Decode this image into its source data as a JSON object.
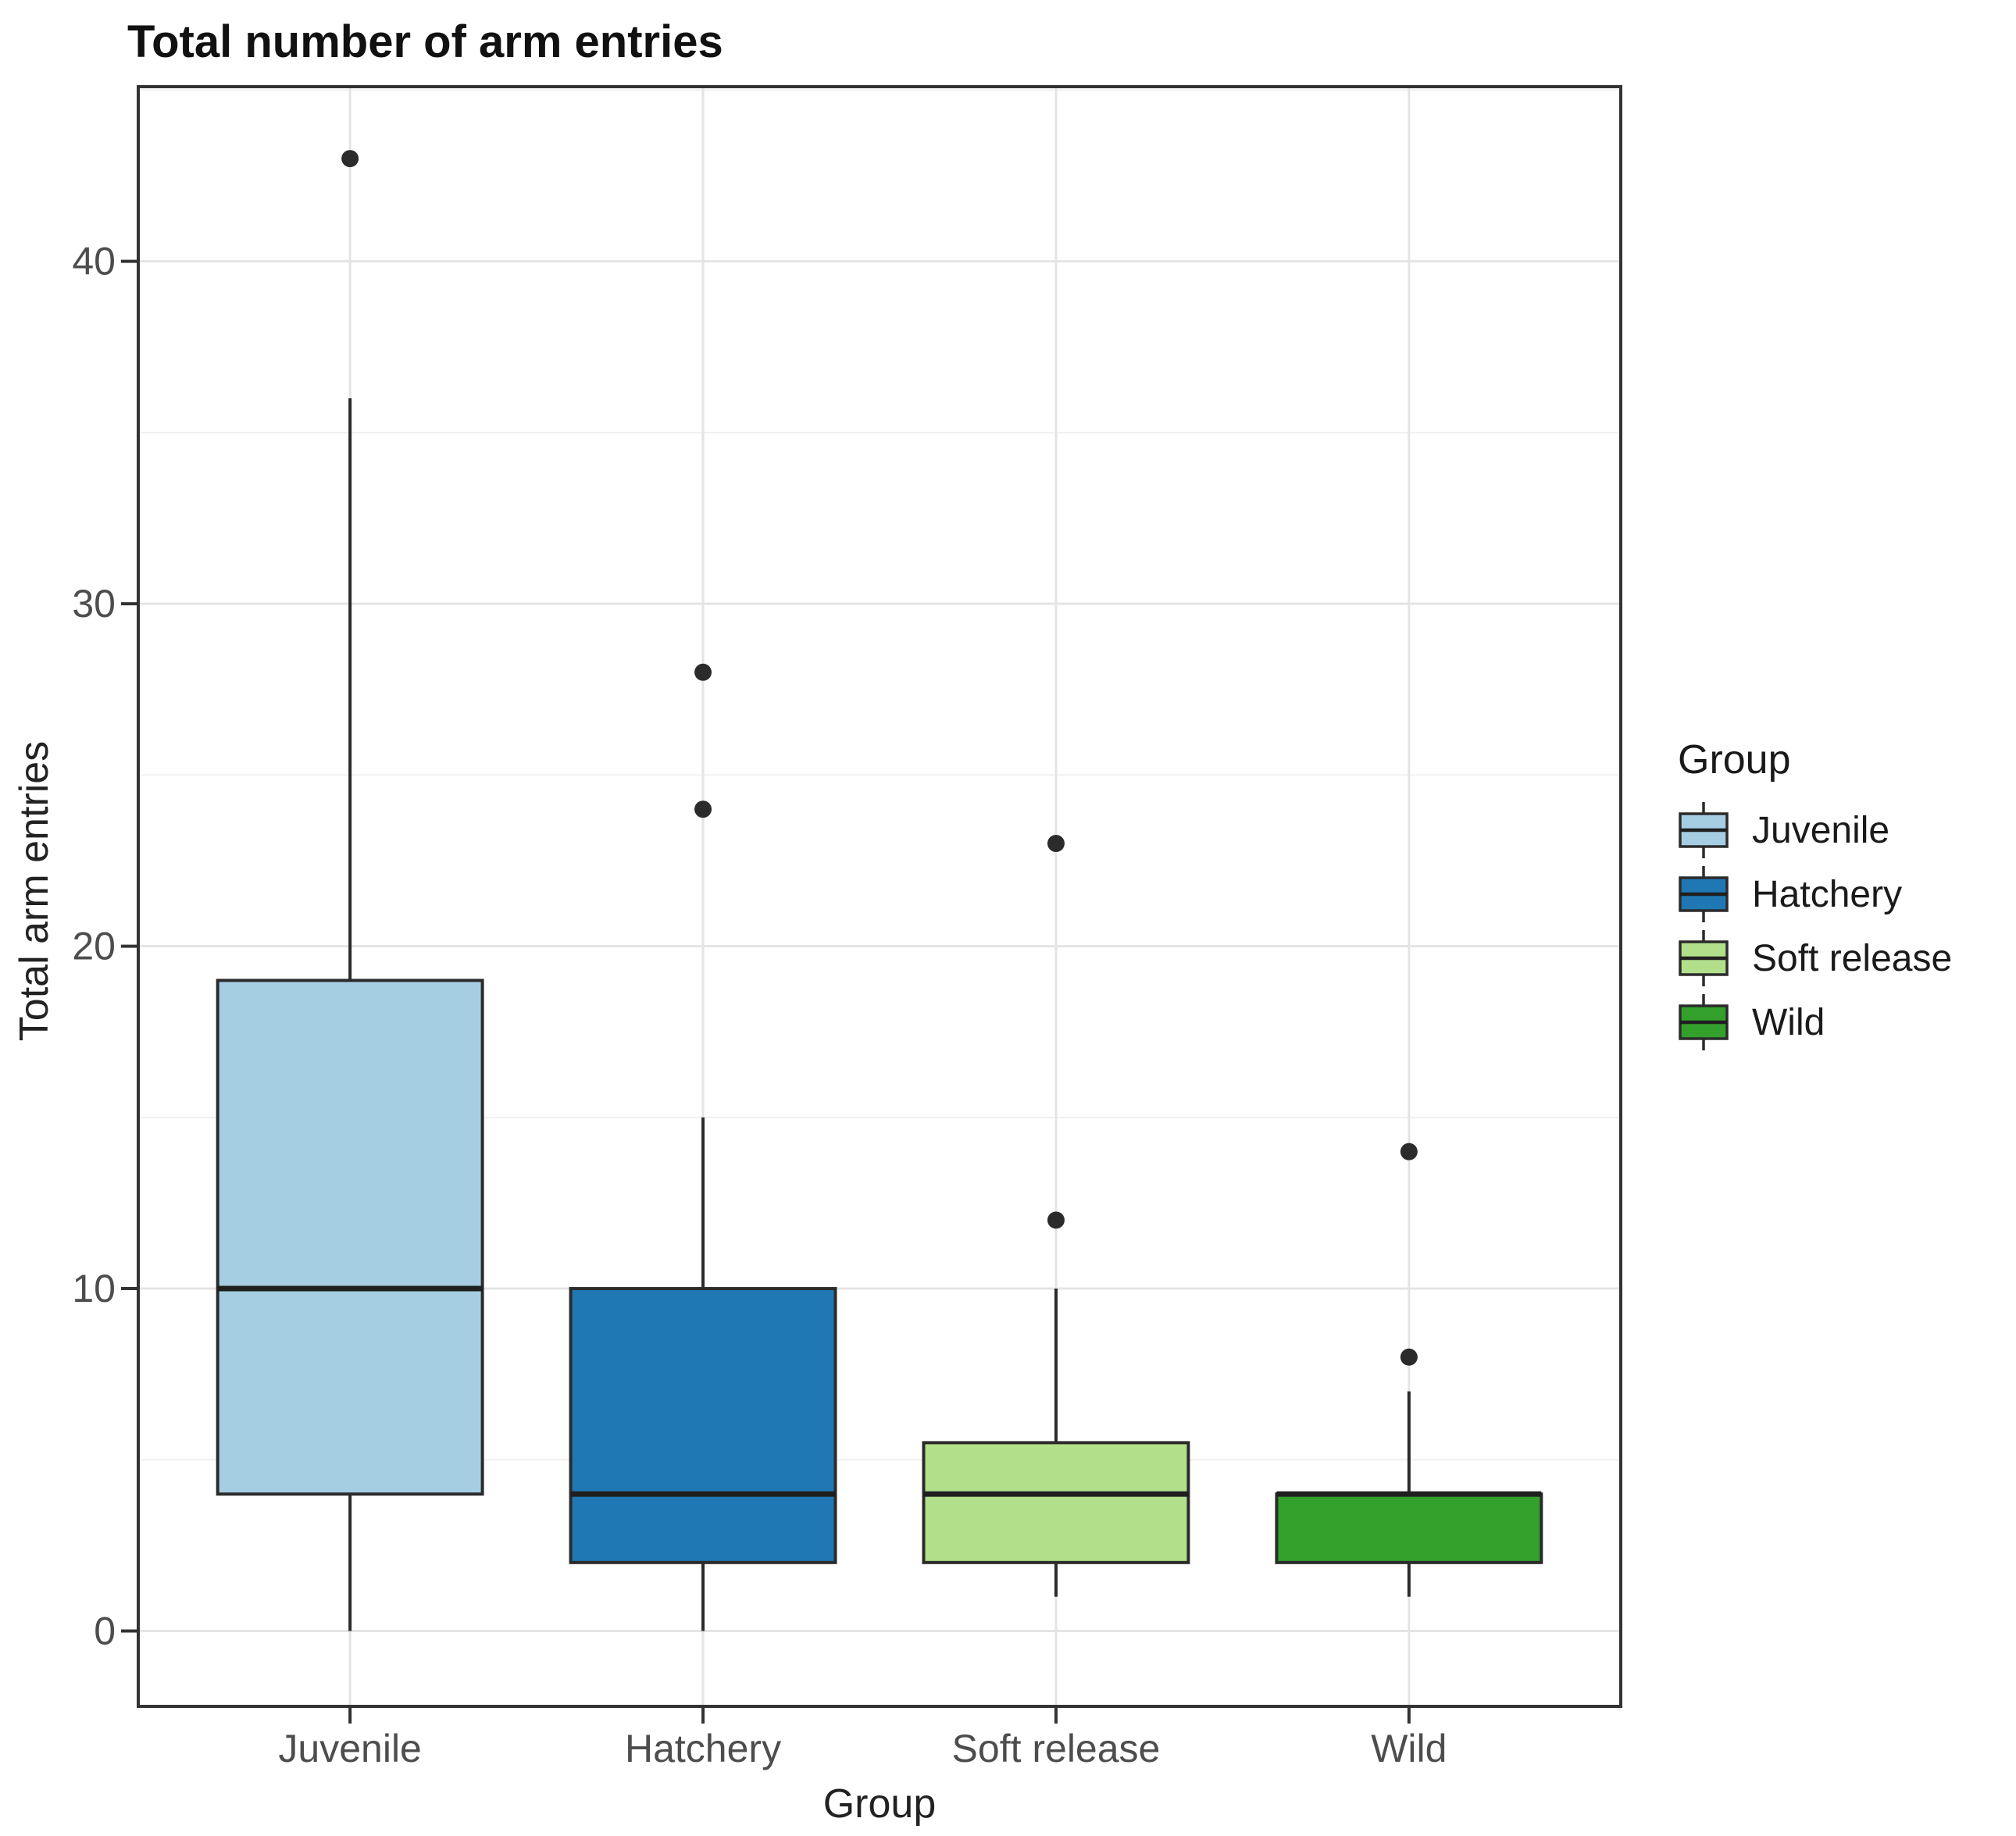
{
  "page": {
    "background": "#ffffff"
  },
  "chart_data": {
    "type": "boxplot",
    "title": "Total number of arm entries",
    "xlabel": "Group",
    "ylabel": "Total arm entries",
    "categories": [
      "Juvenile",
      "Hatchery",
      "Soft release",
      "Wild"
    ],
    "y_ticks": [
      0,
      10,
      20,
      30,
      40
    ],
    "y_minor_gridlines": [
      5,
      15,
      25,
      35,
      45
    ],
    "ylim": [
      -2.2,
      45.1
    ],
    "grid": "horizontal major+minor, vertical major at each category",
    "legend": {
      "title": "Group",
      "position": "right",
      "entries": [
        {
          "label": "Juvenile",
          "fill": "#A6CEE3"
        },
        {
          "label": "Hatchery",
          "fill": "#1F78B4"
        },
        {
          "label": "Soft release",
          "fill": "#B2DF8A"
        },
        {
          "label": "Wild",
          "fill": "#33A02C"
        }
      ]
    },
    "series": [
      {
        "name": "Juvenile",
        "fill": "#A6CEE3",
        "whisker_low": 0,
        "q1": 4,
        "median": 10,
        "q3": 19,
        "whisker_high": 36,
        "outliers": [
          43
        ]
      },
      {
        "name": "Hatchery",
        "fill": "#1F78B4",
        "whisker_low": 0,
        "q1": 2,
        "median": 4,
        "q3": 10,
        "whisker_high": 15,
        "outliers": [
          24,
          28
        ]
      },
      {
        "name": "Soft release",
        "fill": "#B2DF8A",
        "whisker_low": 1,
        "q1": 2,
        "median": 4,
        "q3": 5.5,
        "whisker_high": 10,
        "outliers": [
          12,
          23
        ]
      },
      {
        "name": "Wild",
        "fill": "#33A02C",
        "whisker_low": 1,
        "q1": 2,
        "median": 4,
        "q3": 4,
        "whisker_high": 7,
        "outliers": [
          8,
          14
        ]
      }
    ],
    "colors": {
      "box_stroke": "#2b2b2b",
      "median_stroke": "#1f1f1f",
      "outlier": "#2b2b2b",
      "grid_major": "#e4e4e4",
      "grid_minor": "#f0f0f0",
      "panel_border": "#333333",
      "panel_background": "#ffffff",
      "tick_stroke": "#333333",
      "axis_text": "#4d4d4d",
      "title_text": "#111111"
    }
  }
}
